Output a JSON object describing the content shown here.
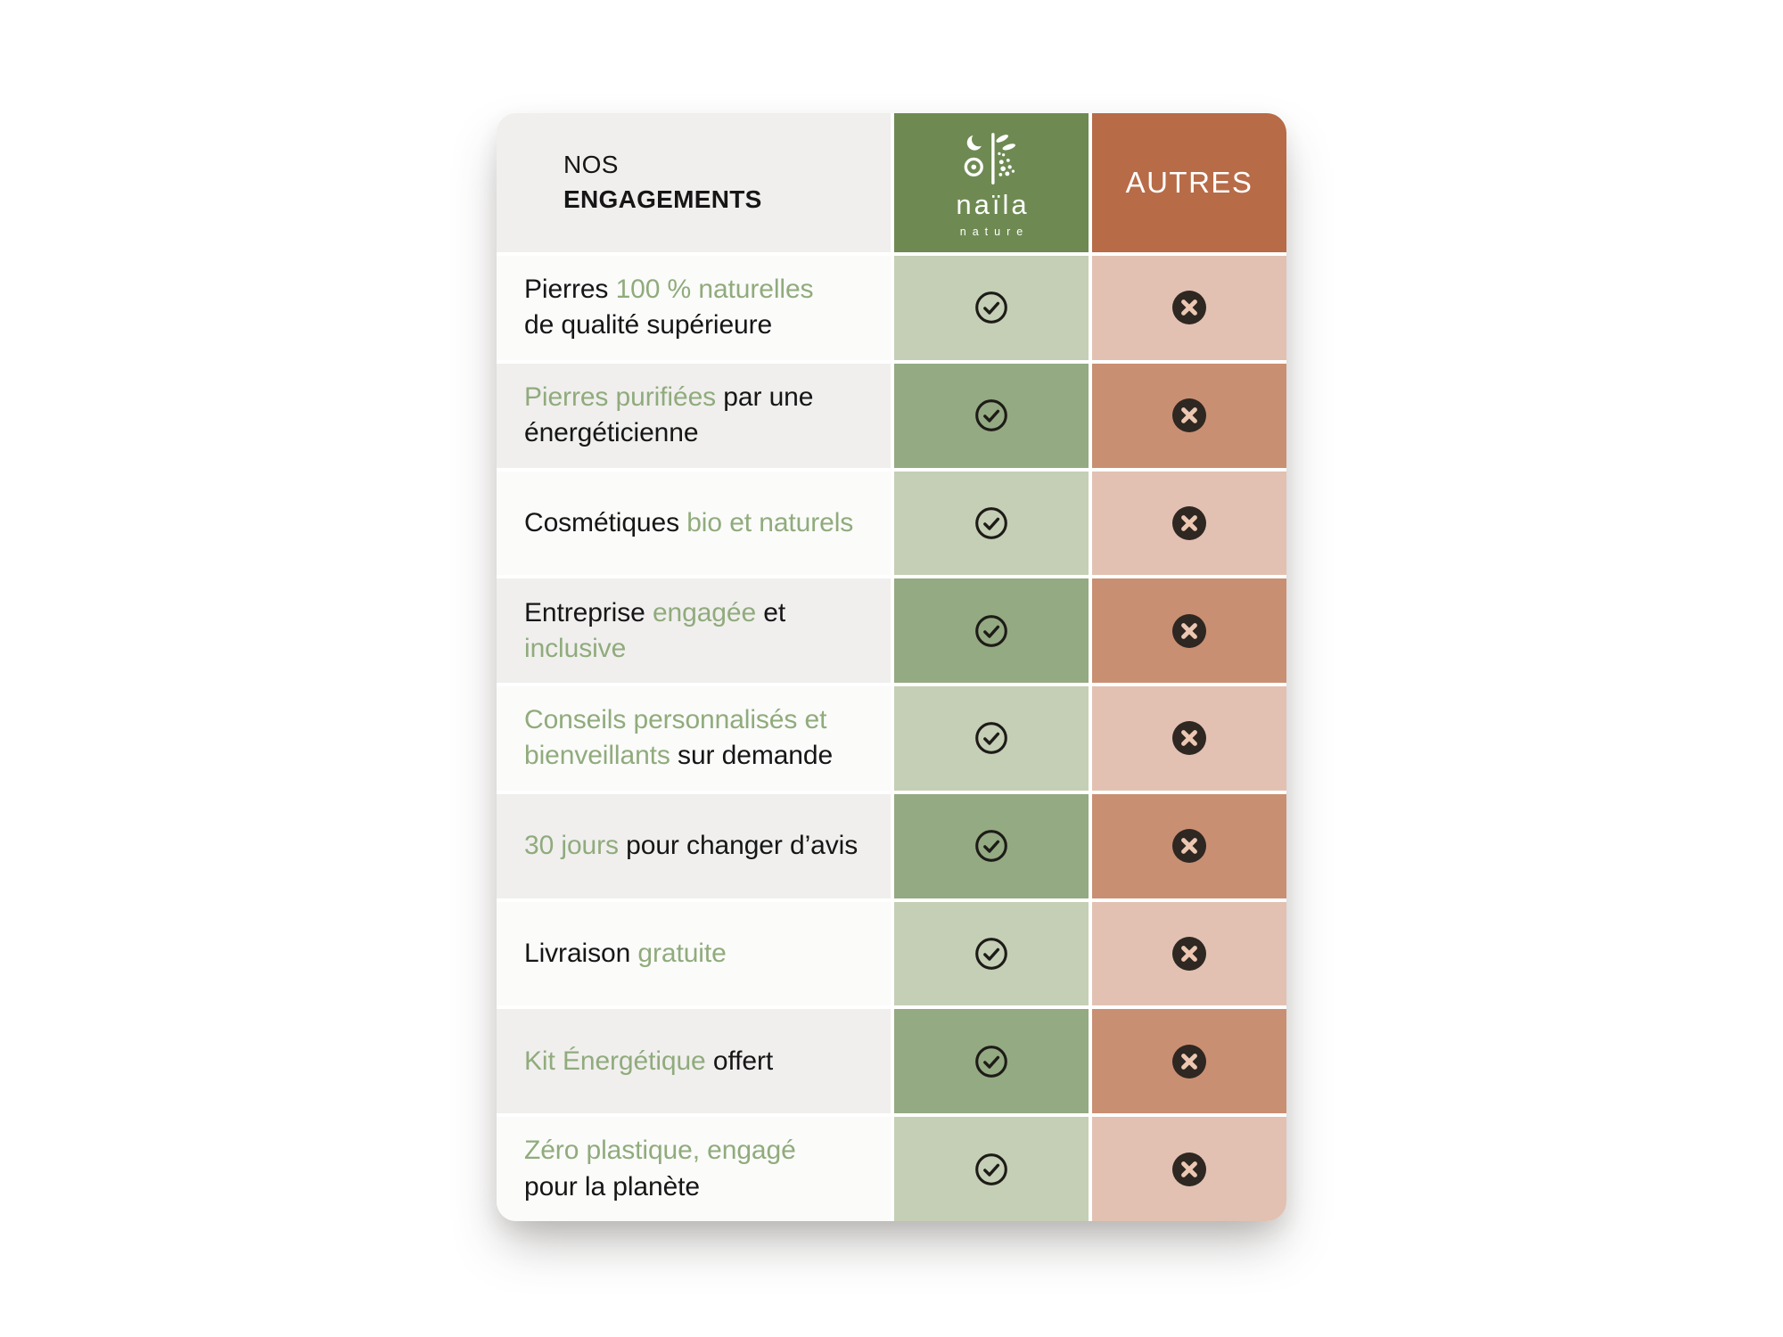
{
  "card": {
    "header": {
      "title_line1": "NOS",
      "title_line2": "ENGAGEMENTS",
      "brand": {
        "name": "naïla",
        "subtitle": "nature",
        "icon": "naila-plant-moon-logo-icon"
      },
      "others_label": "AUTRES"
    },
    "rows": [
      {
        "shade": "light",
        "naila": "check",
        "autres": "cross",
        "parts": [
          {
            "text": "Pierres ",
            "accent": false
          },
          {
            "text": "100 % naturelles",
            "accent": true,
            "break_after": true
          },
          {
            "text": "de qualité supérieure",
            "accent": false
          }
        ]
      },
      {
        "shade": "dark",
        "naila": "check",
        "autres": "cross",
        "parts": [
          {
            "text": "Pierres purifiées",
            "accent": true
          },
          {
            "text": " par une",
            "accent": false,
            "break_after": true
          },
          {
            "text": "énergéticienne",
            "accent": false
          }
        ]
      },
      {
        "shade": "light",
        "naila": "check",
        "autres": "cross",
        "parts": [
          {
            "text": "Cosmétiques ",
            "accent": false
          },
          {
            "text": "bio et naturels",
            "accent": true
          }
        ]
      },
      {
        "shade": "dark",
        "naila": "check",
        "autres": "cross",
        "parts": [
          {
            "text": "Entreprise ",
            "accent": false
          },
          {
            "text": "engagée",
            "accent": true
          },
          {
            "text": " et",
            "accent": false,
            "break_after": true
          },
          {
            "text": "inclusive",
            "accent": true
          }
        ]
      },
      {
        "shade": "light",
        "naila": "check",
        "autres": "cross",
        "parts": [
          {
            "text": "Conseils personnalisés et",
            "accent": true,
            "break_after": true
          },
          {
            "text": "bienveillants",
            "accent": true
          },
          {
            "text": " sur demande",
            "accent": false
          }
        ]
      },
      {
        "shade": "dark",
        "naila": "check",
        "autres": "cross",
        "parts": [
          {
            "text": "30 jours",
            "accent": true
          },
          {
            "text": " pour changer d’avis",
            "accent": false
          }
        ]
      },
      {
        "shade": "light",
        "naila": "check",
        "autres": "cross",
        "parts": [
          {
            "text": "Livraison ",
            "accent": false
          },
          {
            "text": "gratuite",
            "accent": true
          }
        ]
      },
      {
        "shade": "dark",
        "naila": "check",
        "autres": "cross",
        "parts": [
          {
            "text": "Kit Énergétique",
            "accent": true
          },
          {
            "text": " offert",
            "accent": false
          }
        ]
      },
      {
        "shade": "light",
        "naila": "check",
        "autres": "cross",
        "parts": [
          {
            "text": "Zéro plastique, engagé",
            "accent": true,
            "break_after": true
          },
          {
            "text": "pour la planète",
            "accent": false
          }
        ]
      }
    ],
    "icons": {
      "yes": "check-circle-icon",
      "no": "x-circle-icon"
    },
    "colors": {
      "header_label_bg": "#f0efed",
      "row_light_bg": "#fbfbfa",
      "row_dark_bg": "#f0efee",
      "brand_header_bg": "#6e8a52",
      "brand_cell_light": "#c4cfb5",
      "brand_cell_dark": "#94aa82",
      "others_header_bg": "#b76b47",
      "others_cell_light": "#e2c1b2",
      "others_cell_dark": "#c98f72",
      "accent_text": "#90ab7c",
      "text_color": "#161616",
      "check_stroke": "#1d1b17",
      "cross_circle_fill": "#2e2722",
      "cross_glyph": "#ecc7b1"
    }
  },
  "chart_data": {
    "type": "table",
    "title": "NOS ENGAGEMENTS",
    "columns": [
      "naïla nature",
      "AUTRES"
    ],
    "categories": [
      "Pierres 100 % naturelles de qualité supérieure",
      "Pierres purifiées par une énergéticienne",
      "Cosmétiques bio et naturels",
      "Entreprise engagée et inclusive",
      "Conseils personnalisés et bienveillants sur demande",
      "30 jours pour changer d’avis",
      "Livraison gratuite",
      "Kit Énergétique offert",
      "Zéro plastique, engagé pour la planète"
    ],
    "series": [
      {
        "name": "naïla nature",
        "values": [
          true,
          true,
          true,
          true,
          true,
          true,
          true,
          true,
          true
        ]
      },
      {
        "name": "AUTRES",
        "values": [
          false,
          false,
          false,
          false,
          false,
          false,
          false,
          false,
          false
        ]
      }
    ],
    "legend_position": "top",
    "grid": false
  }
}
